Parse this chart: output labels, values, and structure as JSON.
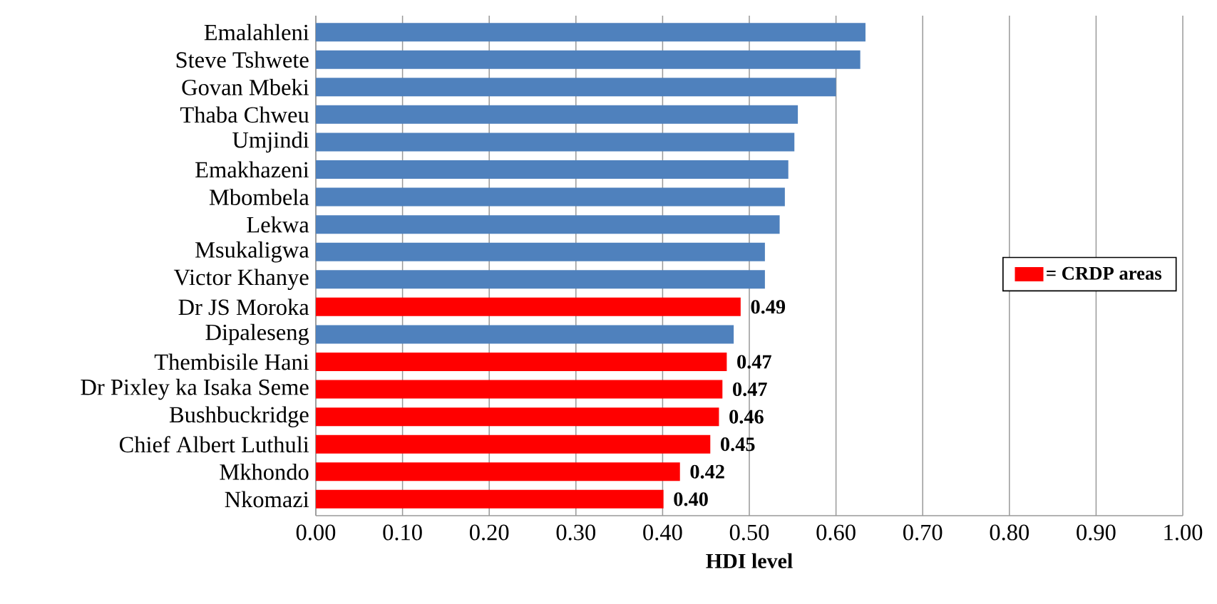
{
  "chart_data": {
    "type": "bar",
    "orientation": "horizontal",
    "xlabel": "HDI level",
    "categories": [
      "Emalahleni",
      "Steve Tshwete",
      "Govan Mbeki",
      "Thaba Chweu",
      "Umjindi",
      "Emakhazeni",
      "Mbombela",
      "Lekwa",
      "Msukaligwa",
      "Victor Khanye",
      "Dr JS Moroka",
      "Dipaleseng",
      "Thembisile Hani",
      "Dr Pixley ka Isaka Seme",
      "Bushbuckridge",
      "Chief Albert Luthuli",
      "Mkhondo",
      "Nkomazi"
    ],
    "series": [
      {
        "color": "#4f81bd",
        "values": [
          0.634,
          0.628,
          0.6,
          0.556,
          0.552,
          0.545,
          0.541,
          0.535,
          0.518,
          0.518,
          null,
          0.482,
          null,
          null,
          null,
          null,
          null,
          null
        ]
      },
      {
        "name": "= CRDP areas",
        "color": "#ff0000",
        "values": [
          null,
          null,
          null,
          null,
          null,
          null,
          null,
          null,
          null,
          null,
          0.49,
          null,
          0.474,
          0.469,
          0.465,
          0.455,
          0.42,
          0.401
        ],
        "value_labels": [
          null,
          null,
          null,
          null,
          null,
          null,
          null,
          null,
          null,
          null,
          "0.49",
          null,
          "0.47",
          "0.47",
          "0.46",
          "0.45",
          "0.42",
          "0.40"
        ]
      }
    ],
    "xlim": [
      0,
      1
    ],
    "xticks": [
      {
        "value": 0,
        "label": "0.00"
      },
      {
        "value": 0.1,
        "label": "0.10"
      },
      {
        "value": 0.2,
        "label": "0.20"
      },
      {
        "value": 0.3,
        "label": "0.30"
      },
      {
        "value": 0.4,
        "label": "0.40"
      },
      {
        "value": 0.5,
        "label": "0.50"
      },
      {
        "value": 0.6,
        "label": "0.60"
      },
      {
        "value": 0.7,
        "label": "0.70"
      },
      {
        "value": 0.8,
        "label": "0.80"
      },
      {
        "value": 0.9,
        "label": "0.90"
      },
      {
        "value": 1,
        "label": "1.00"
      }
    ],
    "grid": "x",
    "legend": "right"
  }
}
